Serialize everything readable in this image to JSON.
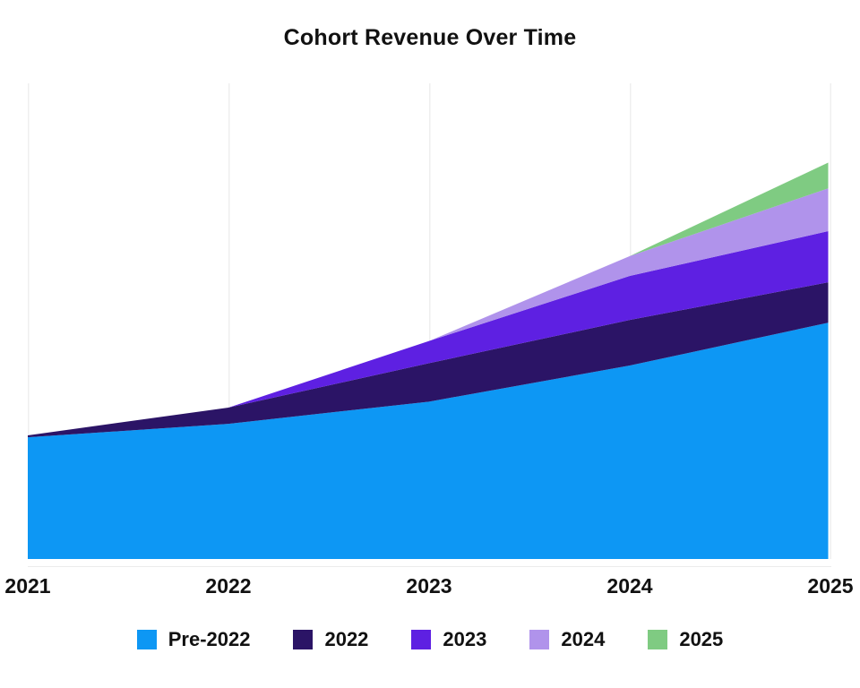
{
  "chart_data": {
    "type": "area",
    "stacked": true,
    "title": "Cohort Revenue Over Time",
    "xlabel": "",
    "ylabel": "",
    "x_labels": [
      "2021",
      "2022",
      "2023",
      "2024",
      "2025"
    ],
    "ylim": [
      0,
      120
    ],
    "grid": "vertical-only",
    "gridline_color": "#efefef",
    "background": "#ffffff",
    "legend_position": "bottom",
    "series": [
      {
        "name": "Pre-2022",
        "color": "#0d97f4",
        "values": [
          30.7,
          34.1,
          39.7,
          48.8,
          59.6
        ]
      },
      {
        "name": "2022",
        "color": "#2b1466",
        "values": [
          0.5,
          4.1,
          9.7,
          11.5,
          10.2
        ]
      },
      {
        "name": "2023",
        "color": "#5e20e2",
        "values": [
          0,
          0,
          5.6,
          11.1,
          12.9
        ]
      },
      {
        "name": "2024",
        "color": "#b093eb",
        "values": [
          0,
          0,
          0,
          5.0,
          10.8
        ]
      },
      {
        "name": "2025",
        "color": "#7fcb82",
        "values": [
          0,
          0,
          0,
          0,
          6.5
        ]
      }
    ],
    "totals_by_year": [
      31.2,
      38.2,
      55.0,
      76.4,
      100.0
    ]
  }
}
